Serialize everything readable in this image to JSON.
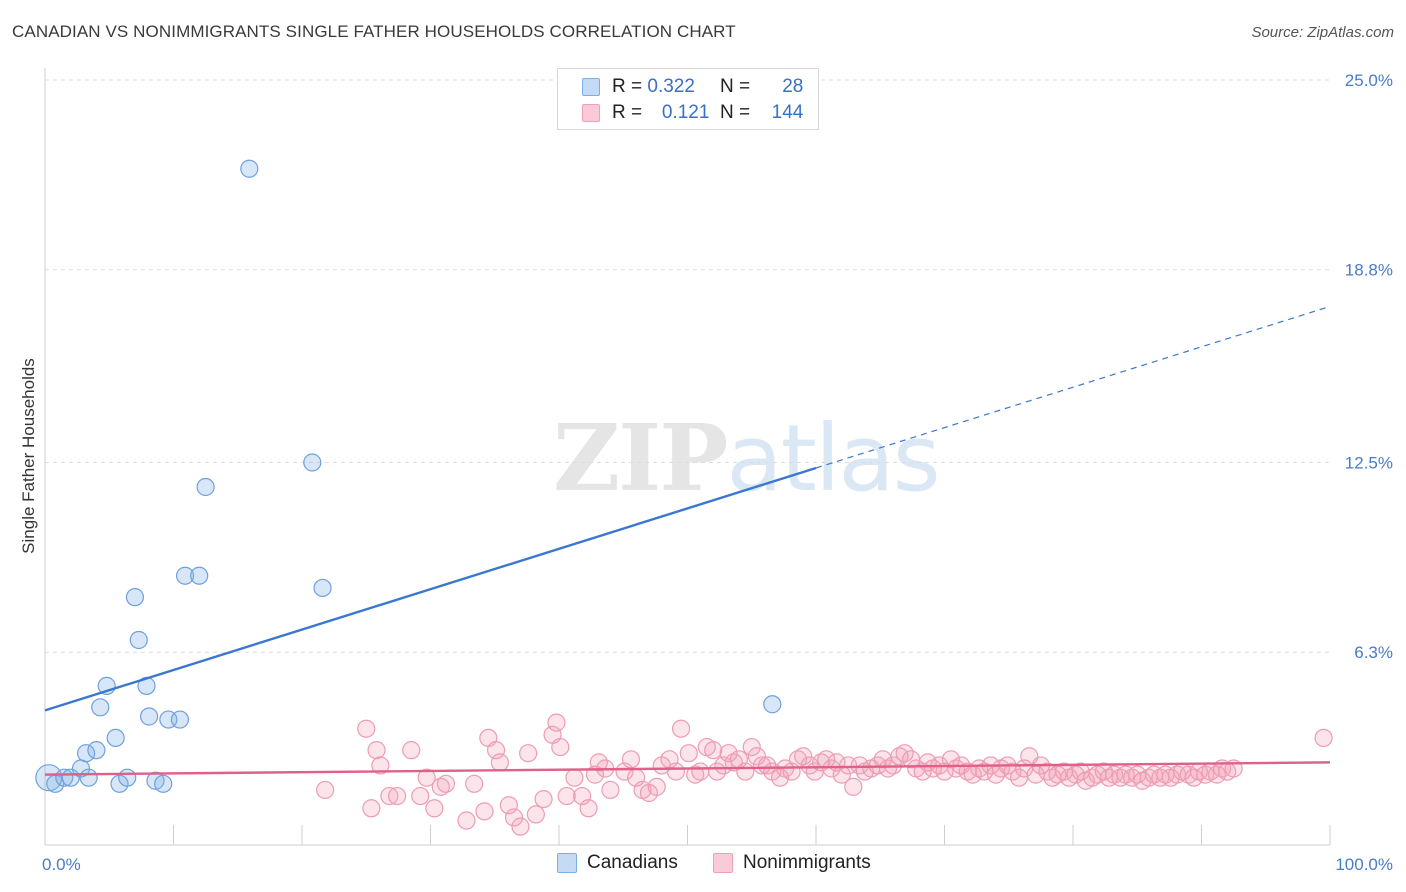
{
  "header": {
    "title": "CANADIAN VS NONIMMIGRANTS SINGLE FATHER HOUSEHOLDS CORRELATION CHART",
    "source": "Source: ZipAtlas.com"
  },
  "watermark": {
    "zip": "ZIP",
    "atlas": "atlas"
  },
  "legend": {
    "r_label": "R =",
    "n_label": "N =",
    "rows": [
      {
        "r": "0.322",
        "n": "28",
        "color": "#7eaee6"
      },
      {
        "r": "0.121",
        "n": "144",
        "color": "#f2a0b8"
      }
    ]
  },
  "bottom_legend": [
    {
      "label": "Canadians",
      "color": "#7eaee6"
    },
    {
      "label": "Nonimmigrants",
      "color": "#f2a0b8"
    }
  ],
  "chart_data": {
    "type": "scatter",
    "title": "CANADIAN VS NONIMMIGRANTS SINGLE FATHER HOUSEHOLDS CORRELATION CHART",
    "ylabel": "Single Father Households",
    "xlabel": "",
    "xlim": [
      0,
      100
    ],
    "ylim": [
      0,
      25
    ],
    "x_tick_labels": [
      "0.0%",
      "100.0%"
    ],
    "y_ticks": [
      6.3,
      12.5,
      18.8,
      25.0
    ],
    "y_tick_labels": [
      "6.3%",
      "12.5%",
      "18.8%",
      "25.0%"
    ],
    "grid": true,
    "colors": {
      "canadians": "#3a78d0",
      "nonimmigrants": "#e0608a"
    },
    "series": [
      {
        "name": "Canadians",
        "points": [
          [
            0.3,
            2.2
          ],
          [
            0.8,
            2.0
          ],
          [
            1.5,
            2.2
          ],
          [
            2.0,
            2.2
          ],
          [
            2.8,
            2.5
          ],
          [
            3.2,
            3.0
          ],
          [
            3.4,
            2.2
          ],
          [
            4.0,
            3.1
          ],
          [
            4.3,
            4.5
          ],
          [
            4.8,
            5.2
          ],
          [
            5.5,
            3.5
          ],
          [
            5.8,
            2.0
          ],
          [
            6.4,
            2.2
          ],
          [
            7.0,
            8.1
          ],
          [
            7.3,
            6.7
          ],
          [
            7.9,
            5.2
          ],
          [
            8.1,
            4.2
          ],
          [
            8.6,
            2.1
          ],
          [
            9.2,
            2.0
          ],
          [
            9.6,
            4.1
          ],
          [
            10.5,
            4.1
          ],
          [
            10.9,
            8.8
          ],
          [
            12.0,
            8.8
          ],
          [
            12.5,
            11.7
          ],
          [
            15.9,
            22.1
          ],
          [
            20.8,
            12.5
          ],
          [
            21.6,
            8.4
          ],
          [
            56.6,
            4.6
          ]
        ],
        "trend": {
          "x0": 0,
          "y0": 4.4,
          "x1": 100,
          "y1": 17.6,
          "solid_until_x": 60
        }
      },
      {
        "name": "Nonimmigrants",
        "points": [
          [
            21.8,
            1.8
          ],
          [
            25.0,
            3.8
          ],
          [
            25.4,
            1.2
          ],
          [
            25.8,
            3.1
          ],
          [
            26.1,
            2.6
          ],
          [
            26.8,
            1.6
          ],
          [
            27.4,
            1.6
          ],
          [
            28.5,
            3.1
          ],
          [
            29.2,
            1.6
          ],
          [
            29.7,
            2.2
          ],
          [
            30.3,
            1.2
          ],
          [
            30.8,
            1.9
          ],
          [
            31.2,
            2.0
          ],
          [
            32.8,
            0.8
          ],
          [
            33.4,
            2.0
          ],
          [
            34.2,
            1.1
          ],
          [
            34.5,
            3.5
          ],
          [
            35.1,
            3.1
          ],
          [
            35.4,
            2.7
          ],
          [
            36.1,
            1.3
          ],
          [
            36.5,
            0.9
          ],
          [
            37.0,
            0.6
          ],
          [
            37.6,
            3.0
          ],
          [
            38.2,
            1.0
          ],
          [
            38.8,
            1.5
          ],
          [
            39.5,
            3.6
          ],
          [
            39.8,
            4.0
          ],
          [
            40.1,
            3.2
          ],
          [
            40.6,
            1.6
          ],
          [
            41.2,
            2.2
          ],
          [
            41.8,
            1.6
          ],
          [
            42.3,
            1.2
          ],
          [
            42.8,
            2.3
          ],
          [
            43.1,
            2.7
          ],
          [
            43.6,
            2.5
          ],
          [
            44.0,
            1.8
          ],
          [
            45.1,
            2.4
          ],
          [
            45.6,
            2.8
          ],
          [
            46.0,
            2.2
          ],
          [
            46.5,
            1.8
          ],
          [
            47.0,
            1.7
          ],
          [
            47.6,
            1.9
          ],
          [
            48.0,
            2.6
          ],
          [
            48.6,
            2.8
          ],
          [
            49.1,
            2.4
          ],
          [
            49.5,
            3.8
          ],
          [
            50.1,
            3.0
          ],
          [
            50.6,
            2.3
          ],
          [
            51.0,
            2.4
          ],
          [
            51.5,
            3.2
          ],
          [
            52.0,
            3.1
          ],
          [
            52.3,
            2.4
          ],
          [
            52.8,
            2.6
          ],
          [
            53.2,
            3.0
          ],
          [
            53.6,
            2.7
          ],
          [
            54.0,
            2.8
          ],
          [
            54.5,
            2.4
          ],
          [
            55.0,
            3.2
          ],
          [
            55.4,
            2.9
          ],
          [
            55.8,
            2.6
          ],
          [
            56.2,
            2.6
          ],
          [
            56.6,
            2.4
          ],
          [
            57.2,
            2.2
          ],
          [
            57.6,
            2.5
          ],
          [
            58.1,
            2.4
          ],
          [
            58.6,
            2.8
          ],
          [
            59.0,
            2.9
          ],
          [
            59.5,
            2.6
          ],
          [
            59.9,
            2.4
          ],
          [
            60.4,
            2.7
          ],
          [
            60.8,
            2.8
          ],
          [
            61.2,
            2.5
          ],
          [
            61.6,
            2.7
          ],
          [
            62.0,
            2.3
          ],
          [
            62.5,
            2.6
          ],
          [
            62.9,
            1.9
          ],
          [
            63.4,
            2.6
          ],
          [
            63.8,
            2.4
          ],
          [
            64.3,
            2.5
          ],
          [
            64.8,
            2.6
          ],
          [
            65.2,
            2.8
          ],
          [
            65.6,
            2.5
          ],
          [
            66.0,
            2.6
          ],
          [
            66.5,
            2.9
          ],
          [
            66.9,
            3.0
          ],
          [
            67.4,
            2.8
          ],
          [
            67.8,
            2.5
          ],
          [
            68.3,
            2.4
          ],
          [
            68.7,
            2.7
          ],
          [
            69.1,
            2.5
          ],
          [
            69.6,
            2.6
          ],
          [
            70.0,
            2.4
          ],
          [
            70.5,
            2.8
          ],
          [
            70.9,
            2.5
          ],
          [
            71.3,
            2.6
          ],
          [
            71.8,
            2.4
          ],
          [
            72.2,
            2.3
          ],
          [
            72.7,
            2.5
          ],
          [
            73.1,
            2.4
          ],
          [
            73.6,
            2.6
          ],
          [
            74.0,
            2.3
          ],
          [
            74.4,
            2.5
          ],
          [
            74.9,
            2.6
          ],
          [
            75.3,
            2.4
          ],
          [
            75.8,
            2.2
          ],
          [
            76.2,
            2.5
          ],
          [
            76.6,
            2.9
          ],
          [
            77.1,
            2.3
          ],
          [
            77.5,
            2.6
          ],
          [
            78.0,
            2.4
          ],
          [
            78.4,
            2.2
          ],
          [
            78.8,
            2.3
          ],
          [
            79.3,
            2.4
          ],
          [
            79.7,
            2.2
          ],
          [
            80.2,
            2.3
          ],
          [
            80.6,
            2.4
          ],
          [
            81.0,
            2.1
          ],
          [
            81.5,
            2.2
          ],
          [
            81.9,
            2.3
          ],
          [
            82.4,
            2.4
          ],
          [
            82.8,
            2.2
          ],
          [
            83.2,
            2.3
          ],
          [
            83.7,
            2.2
          ],
          [
            84.1,
            2.3
          ],
          [
            84.6,
            2.2
          ],
          [
            85.0,
            2.3
          ],
          [
            85.4,
            2.1
          ],
          [
            85.9,
            2.2
          ],
          [
            86.3,
            2.3
          ],
          [
            86.8,
            2.2
          ],
          [
            87.2,
            2.3
          ],
          [
            87.6,
            2.2
          ],
          [
            88.1,
            2.3
          ],
          [
            88.5,
            2.4
          ],
          [
            89.0,
            2.3
          ],
          [
            89.4,
            2.2
          ],
          [
            89.8,
            2.4
          ],
          [
            90.3,
            2.3
          ],
          [
            90.7,
            2.4
          ],
          [
            91.2,
            2.3
          ],
          [
            91.6,
            2.5
          ],
          [
            92.0,
            2.4
          ],
          [
            92.5,
            2.5
          ],
          [
            99.5,
            3.5
          ]
        ],
        "trend": {
          "x0": 0,
          "y0": 2.3,
          "x1": 100,
          "y1": 2.7,
          "solid_until_x": 100
        }
      }
    ]
  }
}
